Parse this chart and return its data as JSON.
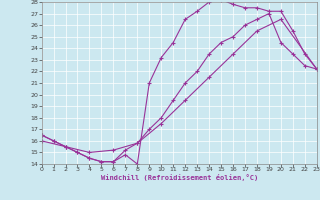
{
  "bg_color": "#cce8f0",
  "line_color": "#993399",
  "xlabel": "Windchill (Refroidissement éolien,°C)",
  "xlim": [
    0,
    23
  ],
  "ylim": [
    14,
    28
  ],
  "xticks": [
    0,
    1,
    2,
    3,
    4,
    5,
    6,
    7,
    8,
    9,
    10,
    11,
    12,
    13,
    14,
    15,
    16,
    17,
    18,
    19,
    20,
    21,
    22,
    23
  ],
  "yticks": [
    14,
    15,
    16,
    17,
    18,
    19,
    20,
    21,
    22,
    23,
    24,
    25,
    26,
    27,
    28
  ],
  "curve1": {
    "x": [
      0,
      1,
      2,
      3,
      4,
      5,
      6,
      7,
      8,
      9,
      10,
      11,
      12,
      13,
      14,
      15,
      16,
      17,
      18,
      19,
      20,
      21,
      22,
      23
    ],
    "y": [
      16.5,
      16.0,
      15.5,
      15.0,
      14.5,
      14.2,
      14.2,
      14.8,
      14.0,
      21.0,
      23.2,
      24.5,
      26.5,
      27.2,
      28.0,
      28.2,
      27.8,
      27.5,
      27.5,
      27.2,
      27.2,
      25.5,
      23.5,
      22.2
    ]
  },
  "curve2": {
    "x": [
      0,
      2,
      4,
      6,
      8,
      10,
      12,
      14,
      16,
      18,
      20,
      23
    ],
    "y": [
      16.0,
      15.5,
      15.0,
      15.2,
      15.8,
      17.5,
      19.5,
      21.5,
      23.5,
      25.5,
      26.5,
      22.2
    ]
  },
  "curve3": {
    "x": [
      0,
      1,
      2,
      3,
      4,
      5,
      6,
      7,
      8,
      9,
      10,
      11,
      12,
      13,
      14,
      15,
      16,
      17,
      18,
      19,
      20,
      21,
      22,
      23
    ],
    "y": [
      16.5,
      16.0,
      15.5,
      15.0,
      14.5,
      14.2,
      14.2,
      15.2,
      15.8,
      17.0,
      18.0,
      19.5,
      21.0,
      22.0,
      23.5,
      24.5,
      25.0,
      26.0,
      26.5,
      27.0,
      24.5,
      23.5,
      22.5,
      22.2
    ]
  }
}
